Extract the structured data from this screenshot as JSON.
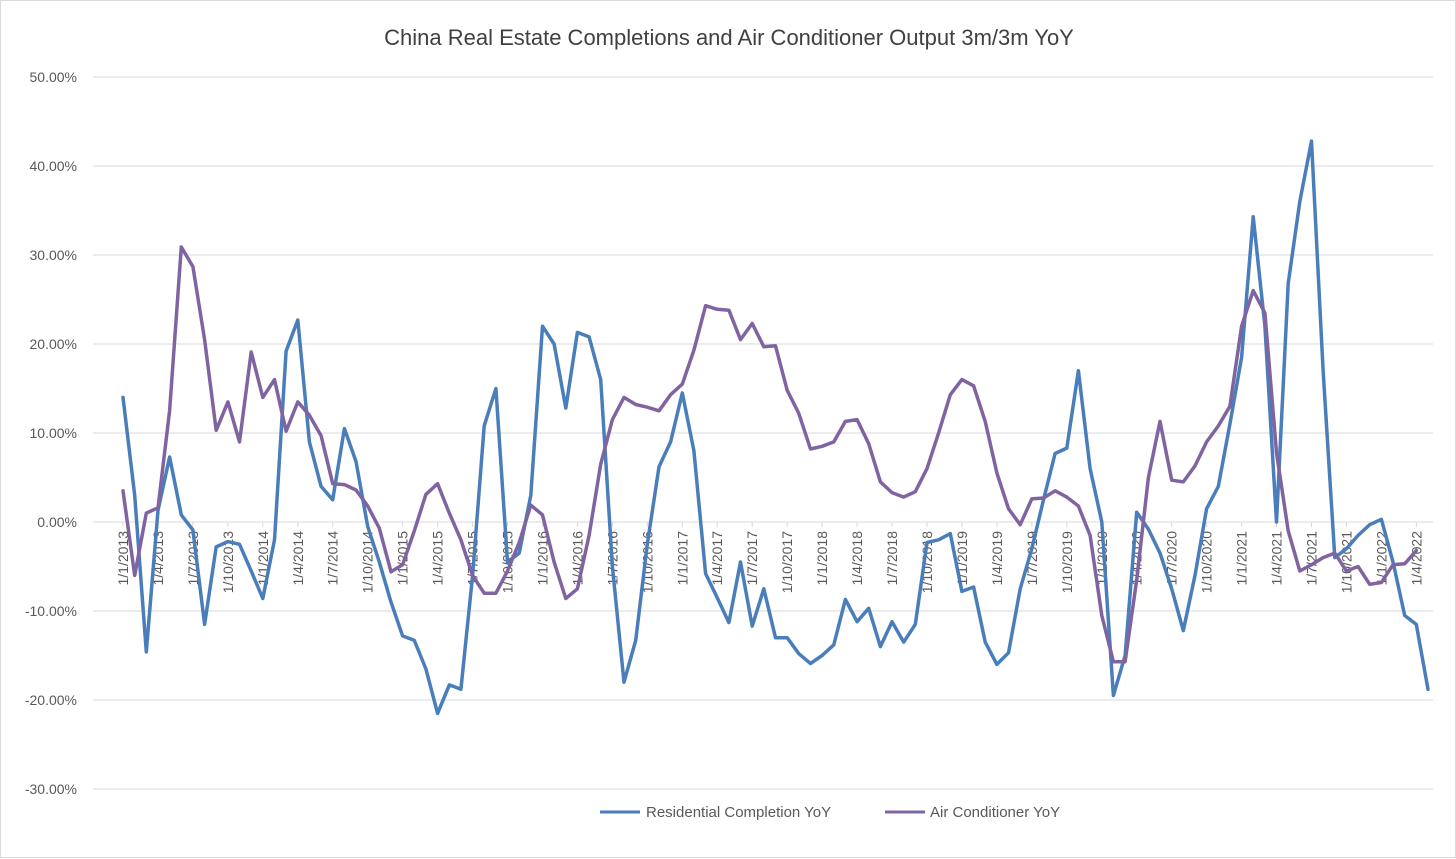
{
  "chart_data": {
    "type": "line",
    "title": "China Real Estate Completions and Air Conditioner Output 3m/3m YoY",
    "xlabel": "",
    "ylabel": "",
    "ylim": [
      -30,
      50
    ],
    "ytick_values": [
      -30,
      -20,
      -10,
      0,
      10,
      20,
      30,
      40,
      50
    ],
    "ytick_labels": [
      "-30.00%",
      "-20.00%",
      "-10.00%",
      "0.00%",
      "10.00%",
      "20.00%",
      "30.00%",
      "40.00%",
      "50.00%"
    ],
    "grid": true,
    "legend_position": "bottom",
    "x_start": "1/1/2013",
    "x_count": 113,
    "xtick_indices": [
      0,
      3,
      6,
      9,
      12,
      15,
      18,
      21,
      24,
      27,
      30,
      33,
      36,
      39,
      42,
      45,
      48,
      51,
      54,
      57,
      60,
      63,
      66,
      69,
      72,
      75,
      78,
      81,
      84,
      87,
      90,
      93,
      96,
      99,
      102,
      105,
      108,
      111
    ],
    "xtick_labels": [
      "1/1/2013",
      "1/4/2013",
      "1/7/2013",
      "1/10/2013",
      "1/1/2014",
      "1/4/2014",
      "1/7/2014",
      "1/10/2014",
      "1/1/2015",
      "1/4/2015",
      "1/7/2015",
      "1/10/2015",
      "1/1/2016",
      "1/4/2016",
      "1/7/2016",
      "1/10/2016",
      "1/1/2017",
      "1/4/2017",
      "1/7/2017",
      "1/10/2017",
      "1/1/2018",
      "1/4/2018",
      "1/7/2018",
      "1/10/2018",
      "1/1/2019",
      "1/4/2019",
      "1/7/2019",
      "1/10/2019",
      "1/1/2020",
      "1/4/2020",
      "1/7/2020",
      "1/10/2020",
      "1/1/2021",
      "1/4/2021",
      "1/7/2021",
      "1/10/2021",
      "1/1/2022",
      "1/4/2022"
    ],
    "series": [
      {
        "name": "Residential Completion YoY",
        "color": "#4a7ebb",
        "start_index": 0,
        "values": [
          14.0,
          3.0,
          -14.6,
          1.3,
          7.3,
          0.8,
          -0.9,
          -11.5,
          -2.8,
          -2.2,
          -2.5,
          -5.5,
          -8.6,
          -2.0,
          19.2,
          22.7,
          9.0,
          4.0,
          2.5,
          10.5,
          6.8,
          -0.5,
          -4.5,
          -9.0,
          -12.8,
          -13.3,
          -16.5,
          -21.5,
          -18.3,
          -18.8,
          -6.0,
          10.8,
          15.0,
          -4.5,
          -3.5,
          3.0,
          22.0,
          20.0,
          12.8,
          21.3,
          20.8,
          16.0,
          -5.0,
          -18.0,
          -13.3,
          -2.5,
          6.2,
          9.0,
          14.5,
          8.0,
          -5.8,
          -8.5,
          -11.3,
          -4.5,
          -11.7,
          -7.5,
          -13.0,
          -13.0,
          -14.8,
          -15.9,
          -15.0,
          -13.8,
          -8.7,
          -11.2,
          -9.7,
          -14.0,
          -11.2,
          -13.5,
          -11.5,
          -2.3,
          -2.0,
          -1.3,
          -7.8,
          -7.3,
          -13.5,
          -16.0,
          -14.7,
          -7.5,
          -3.0,
          2.5,
          7.7,
          8.3,
          17.0,
          6.0,
          0.0,
          -19.5,
          -15.0,
          1.1,
          -0.8,
          -3.5,
          -7.5,
          -12.2,
          -6.0,
          1.5,
          4.0,
          11.0,
          18.5,
          34.3,
          22.0,
          0.0,
          26.8,
          36.0,
          42.8,
          17.0,
          -4.0,
          -3.0,
          -1.5,
          -0.3,
          0.3,
          -4.5,
          -10.5,
          -11.5,
          -18.8
        ]
      },
      {
        "name": "Air Conditioner YoY",
        "color": "#8064a2",
        "start_index": 0,
        "values": [
          3.5,
          -6.0,
          1.0,
          1.6,
          12.5,
          30.9,
          28.7,
          20.5,
          10.3,
          13.5,
          9.0,
          19.1,
          14.0,
          16.0,
          10.2,
          13.5,
          12.0,
          9.7,
          4.3,
          4.2,
          3.6,
          1.8,
          -0.7,
          -5.6,
          -4.8,
          -1.0,
          3.1,
          4.3,
          1.0,
          -2.0,
          -6.0,
          -8.0,
          -8.0,
          -5.5,
          -2.3,
          1.9,
          0.8,
          -4.5,
          -8.6,
          -7.5,
          -1.5,
          6.5,
          11.5,
          14.0,
          13.2,
          12.9,
          12.5,
          14.3,
          15.5,
          19.3,
          24.3,
          23.9,
          23.8,
          20.5,
          22.3,
          19.7,
          19.8,
          14.8,
          12.2,
          8.2,
          8.5,
          9.0,
          11.3,
          11.5,
          8.8,
          4.5,
          3.3,
          2.8,
          3.4,
          6.0,
          10.0,
          14.3,
          16.0,
          15.3,
          11.3,
          5.5,
          1.5,
          -0.3,
          2.6,
          2.7,
          3.5,
          2.8,
          1.8,
          -1.5,
          -10.5,
          -15.7,
          -15.7,
          -6.5,
          5.0,
          11.3,
          4.7,
          4.5,
          6.3,
          9.0,
          10.8,
          13.0,
          22.0,
          26.0,
          23.5,
          7.8,
          -1.0,
          -5.5,
          -4.8,
          -4.0,
          -3.5,
          -5.5,
          -5.0,
          -7.0,
          -6.8,
          -4.8,
          -4.7,
          -3.2
        ]
      }
    ]
  }
}
